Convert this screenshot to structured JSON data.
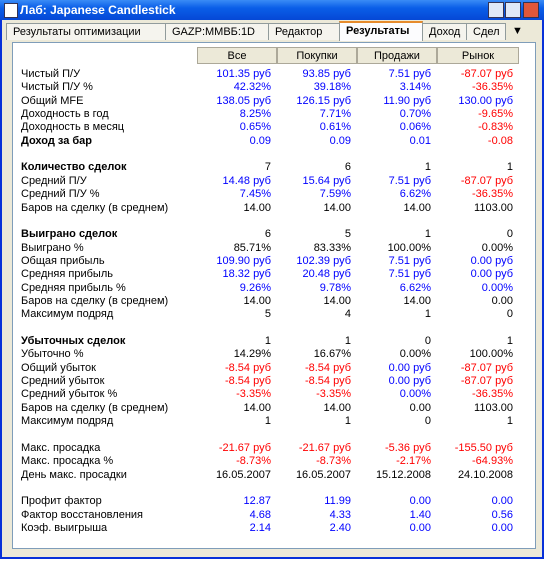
{
  "window": {
    "title": "Лаб: Japanese Candlestick"
  },
  "tabs": [
    "Результаты оптимизации",
    "GAZP:ММВБ:1D",
    "Редактор",
    "Результаты",
    "Доход",
    "Сдел"
  ],
  "active_tab": 3,
  "table": {
    "columns": [
      "Все",
      "Покупки",
      "Продажи",
      "Рынок"
    ],
    "sections": [
      {
        "rows": [
          {
            "label": "Чистый П/У",
            "color": "#0000ff",
            "values": [
              "101.35 руб",
              "93.85 руб",
              "7.51 руб",
              "-87.07 руб"
            ]
          },
          {
            "label": "Чистый П/У %",
            "color": "#0000ff",
            "values": [
              "42.32%",
              "39.18%",
              "3.14%",
              "-36.35%"
            ]
          },
          {
            "label": "Общий MFE",
            "color": "#0000ff",
            "values": [
              "138.05 руб",
              "126.15 руб",
              "11.90 руб",
              "130.00 руб"
            ]
          },
          {
            "label": "Доходность в год",
            "color": "#0000ff",
            "values": [
              "8.25%",
              "7.71%",
              "0.70%",
              "-9.65%"
            ]
          },
          {
            "label": "Доходность в месяц",
            "color": "#0000ff",
            "values": [
              "0.65%",
              "0.61%",
              "0.06%",
              "-0.83%"
            ]
          },
          {
            "label": "Доход за бар",
            "bold": true,
            "color": "#0000ff",
            "values": [
              "0.09",
              "0.09",
              "0.01",
              "-0.08"
            ]
          }
        ]
      },
      {
        "rows": [
          {
            "label": "Количество сделок",
            "bold": true,
            "color": "#000000",
            "values": [
              "7",
              "6",
              "1",
              "1"
            ]
          },
          {
            "label": "Средний П/У",
            "color": "#0000ff",
            "values": [
              "14.48 руб",
              "15.64 руб",
              "7.51 руб",
              "-87.07 руб"
            ]
          },
          {
            "label": "Средний П/У %",
            "color": "#0000ff",
            "values": [
              "7.45%",
              "7.59%",
              "6.62%",
              "-36.35%"
            ]
          },
          {
            "label": "Баров на сделку (в среднем)",
            "color": "#000000",
            "values": [
              "14.00",
              "14.00",
              "14.00",
              "1103.00"
            ]
          }
        ]
      },
      {
        "rows": [
          {
            "label": "Выиграно сделок",
            "bold": true,
            "color": "#000000",
            "values": [
              "6",
              "5",
              "1",
              "0"
            ]
          },
          {
            "label": "Выиграно %",
            "color": "#000000",
            "values": [
              "85.71%",
              "83.33%",
              "100.00%",
              "0.00%"
            ]
          },
          {
            "label": "Общая прибыль",
            "color": "#0000ff",
            "values": [
              "109.90 руб",
              "102.39 руб",
              "7.51 руб",
              "0.00 руб"
            ]
          },
          {
            "label": "Средняя прибыль",
            "color": "#0000ff",
            "values": [
              "18.32 руб",
              "20.48 руб",
              "7.51 руб",
              "0.00 руб"
            ]
          },
          {
            "label": "Средняя прибыль %",
            "color": "#0000ff",
            "values": [
              "9.26%",
              "9.78%",
              "6.62%",
              "0.00%"
            ]
          },
          {
            "label": "Баров на сделку (в среднем)",
            "color": "#000000",
            "values": [
              "14.00",
              "14.00",
              "14.00",
              "0.00"
            ]
          },
          {
            "label": "Максимум подряд",
            "color": "#000000",
            "values": [
              "5",
              "4",
              "1",
              "0"
            ]
          }
        ]
      },
      {
        "rows": [
          {
            "label": "Убыточных сделок",
            "bold": true,
            "color": "#000000",
            "values": [
              "1",
              "1",
              "0",
              "1"
            ]
          },
          {
            "label": "Убыточно %",
            "color": "#000000",
            "values": [
              "14.29%",
              "16.67%",
              "0.00%",
              "100.00%"
            ]
          },
          {
            "label": "Общий убыток",
            "color": "#0000ff",
            "values": [
              "-8.54 руб",
              "-8.54 руб",
              "0.00 руб",
              "-87.07 руб"
            ]
          },
          {
            "label": "Средний убыток",
            "color": "#0000ff",
            "values": [
              "-8.54 руб",
              "-8.54 руб",
              "0.00 руб",
              "-87.07 руб"
            ]
          },
          {
            "label": "Средний убыток %",
            "color": "#0000ff",
            "values": [
              "-3.35%",
              "-3.35%",
              "0.00%",
              "-36.35%"
            ]
          },
          {
            "label": "Баров на сделку (в среднем)",
            "color": "#000000",
            "values": [
              "14.00",
              "14.00",
              "0.00",
              "1103.00"
            ]
          },
          {
            "label": "Максимум подряд",
            "color": "#000000",
            "values": [
              "1",
              "1",
              "0",
              "1"
            ]
          }
        ]
      },
      {
        "rows": [
          {
            "label": "Макс. просадка",
            "color": "#0000ff",
            "values": [
              "-21.67 руб",
              "-21.67 руб",
              "-5.36 руб",
              "-155.50 руб"
            ]
          },
          {
            "label": "Макс. просадка %",
            "color": "#0000ff",
            "values": [
              "-8.73%",
              "-8.73%",
              "-2.17%",
              "-64.93%"
            ]
          },
          {
            "label": "День макс. просадки",
            "color": "#000000",
            "values": [
              "16.05.2007",
              "16.05.2007",
              "15.12.2008",
              "24.10.2008"
            ]
          }
        ]
      },
      {
        "rows": [
          {
            "label": "Профит фактор",
            "color": "#0000ff",
            "values": [
              "12.87",
              "11.99",
              "0.00",
              "0.00"
            ]
          },
          {
            "label": "Фактор восстановления",
            "color": "#0000ff",
            "values": [
              "4.68",
              "4.33",
              "1.40",
              "0.56"
            ]
          },
          {
            "label": "Коэф. выигрыша",
            "color": "#0000ff",
            "values": [
              "2.14",
              "2.40",
              "0.00",
              "0.00"
            ]
          }
        ]
      }
    ]
  }
}
